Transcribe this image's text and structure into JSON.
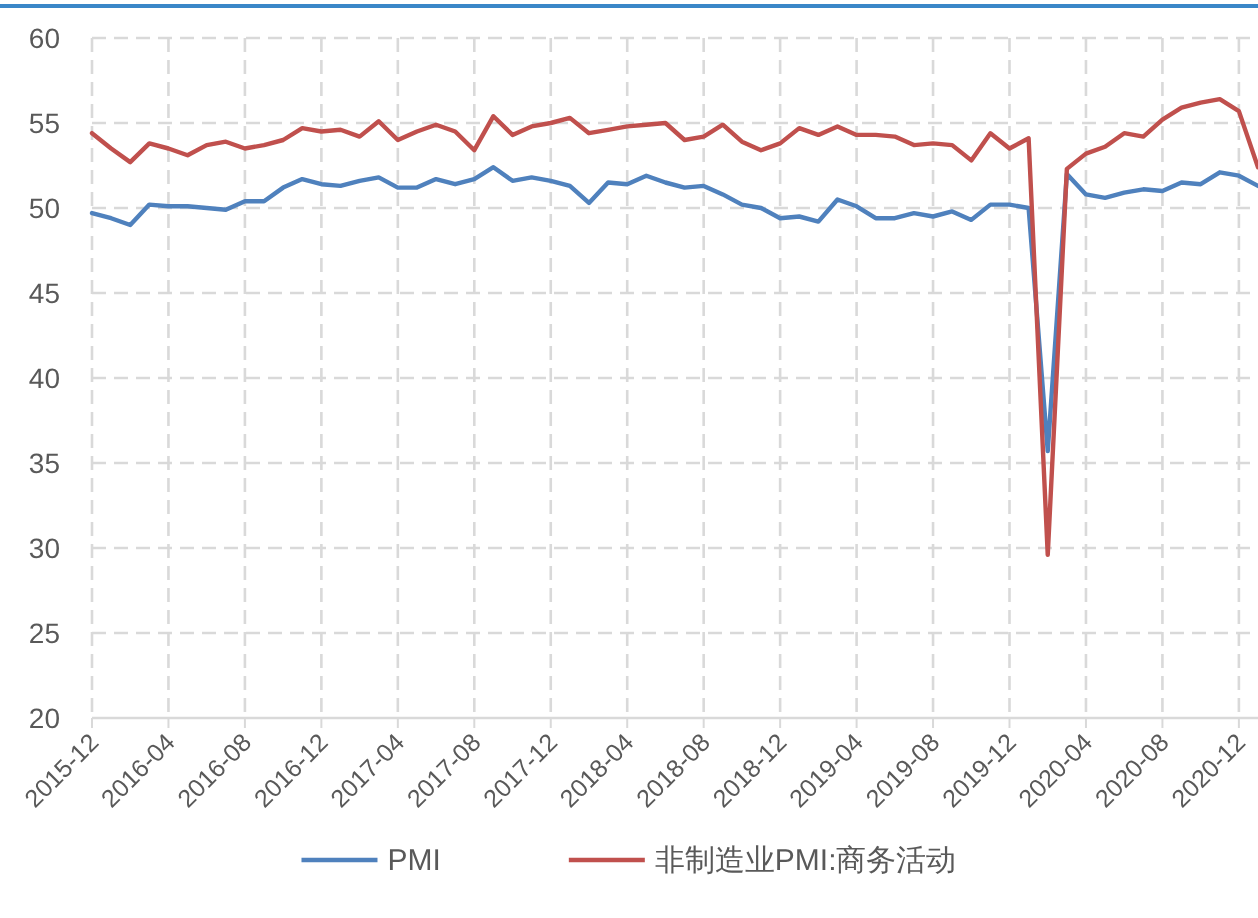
{
  "chart_data": {
    "type": "line",
    "x": [
      "2015-12",
      "2016-01",
      "2016-02",
      "2016-03",
      "2016-04",
      "2016-05",
      "2016-06",
      "2016-07",
      "2016-08",
      "2016-09",
      "2016-10",
      "2016-11",
      "2016-12",
      "2017-01",
      "2017-02",
      "2017-03",
      "2017-04",
      "2017-05",
      "2017-06",
      "2017-07",
      "2017-08",
      "2017-09",
      "2017-10",
      "2017-11",
      "2017-12",
      "2018-01",
      "2018-02",
      "2018-03",
      "2018-04",
      "2018-05",
      "2018-06",
      "2018-07",
      "2018-08",
      "2018-09",
      "2018-10",
      "2018-11",
      "2018-12",
      "2019-01",
      "2019-02",
      "2019-03",
      "2019-04",
      "2019-05",
      "2019-06",
      "2019-07",
      "2019-08",
      "2019-09",
      "2019-10",
      "2019-11",
      "2019-12",
      "2020-01",
      "2020-02",
      "2020-03",
      "2020-04",
      "2020-05",
      "2020-06",
      "2020-07",
      "2020-08",
      "2020-09",
      "2020-10",
      "2020-11",
      "2020-12",
      "2021-01"
    ],
    "series": [
      {
        "name": "PMI",
        "color": "#4f81bd",
        "values": [
          49.7,
          49.4,
          49.0,
          50.2,
          50.1,
          50.1,
          50.0,
          49.9,
          50.4,
          50.4,
          51.2,
          51.7,
          51.4,
          51.3,
          51.6,
          51.8,
          51.2,
          51.2,
          51.7,
          51.4,
          51.7,
          52.4,
          51.6,
          51.8,
          51.6,
          51.3,
          50.3,
          51.5,
          51.4,
          51.9,
          51.5,
          51.2,
          51.3,
          50.8,
          50.2,
          50.0,
          49.4,
          49.5,
          49.2,
          50.5,
          50.1,
          49.4,
          49.4,
          49.7,
          49.5,
          49.8,
          49.3,
          50.2,
          50.2,
          50.0,
          35.7,
          52.0,
          50.8,
          50.6,
          50.9,
          51.1,
          51.0,
          51.5,
          51.4,
          52.1,
          51.9,
          51.3
        ]
      },
      {
        "name": "非制造业PMI:商务活动",
        "color": "#c0504d",
        "values": [
          54.4,
          53.5,
          52.7,
          53.8,
          53.5,
          53.1,
          53.7,
          53.9,
          53.5,
          53.7,
          54.0,
          54.7,
          54.5,
          54.6,
          54.2,
          55.1,
          54.0,
          54.5,
          54.9,
          54.5,
          53.4,
          55.4,
          54.3,
          54.8,
          55.0,
          55.3,
          54.4,
          54.6,
          54.8,
          54.9,
          55.0,
          54.0,
          54.2,
          54.9,
          53.9,
          53.4,
          53.8,
          54.7,
          54.3,
          54.8,
          54.3,
          54.3,
          54.2,
          53.7,
          53.8,
          53.7,
          52.8,
          54.4,
          53.5,
          54.1,
          29.6,
          52.3,
          53.2,
          53.6,
          54.4,
          54.2,
          55.2,
          55.9,
          56.2,
          56.4,
          55.7,
          52.4
        ]
      }
    ],
    "xlim": [
      "2015-12",
      "2021-01"
    ],
    "xticks": [
      "2015-12",
      "2016-04",
      "2016-08",
      "2016-12",
      "2017-04",
      "2017-08",
      "2017-12",
      "2018-04",
      "2018-08",
      "2018-12",
      "2019-04",
      "2019-08",
      "2019-12",
      "2020-04",
      "2020-08",
      "2020-12"
    ],
    "ylim": [
      20,
      60
    ],
    "yticks": [
      20,
      25,
      30,
      35,
      40,
      45,
      50,
      55,
      60
    ],
    "grid": true,
    "legend": "bottom",
    "line_style": "solid"
  }
}
